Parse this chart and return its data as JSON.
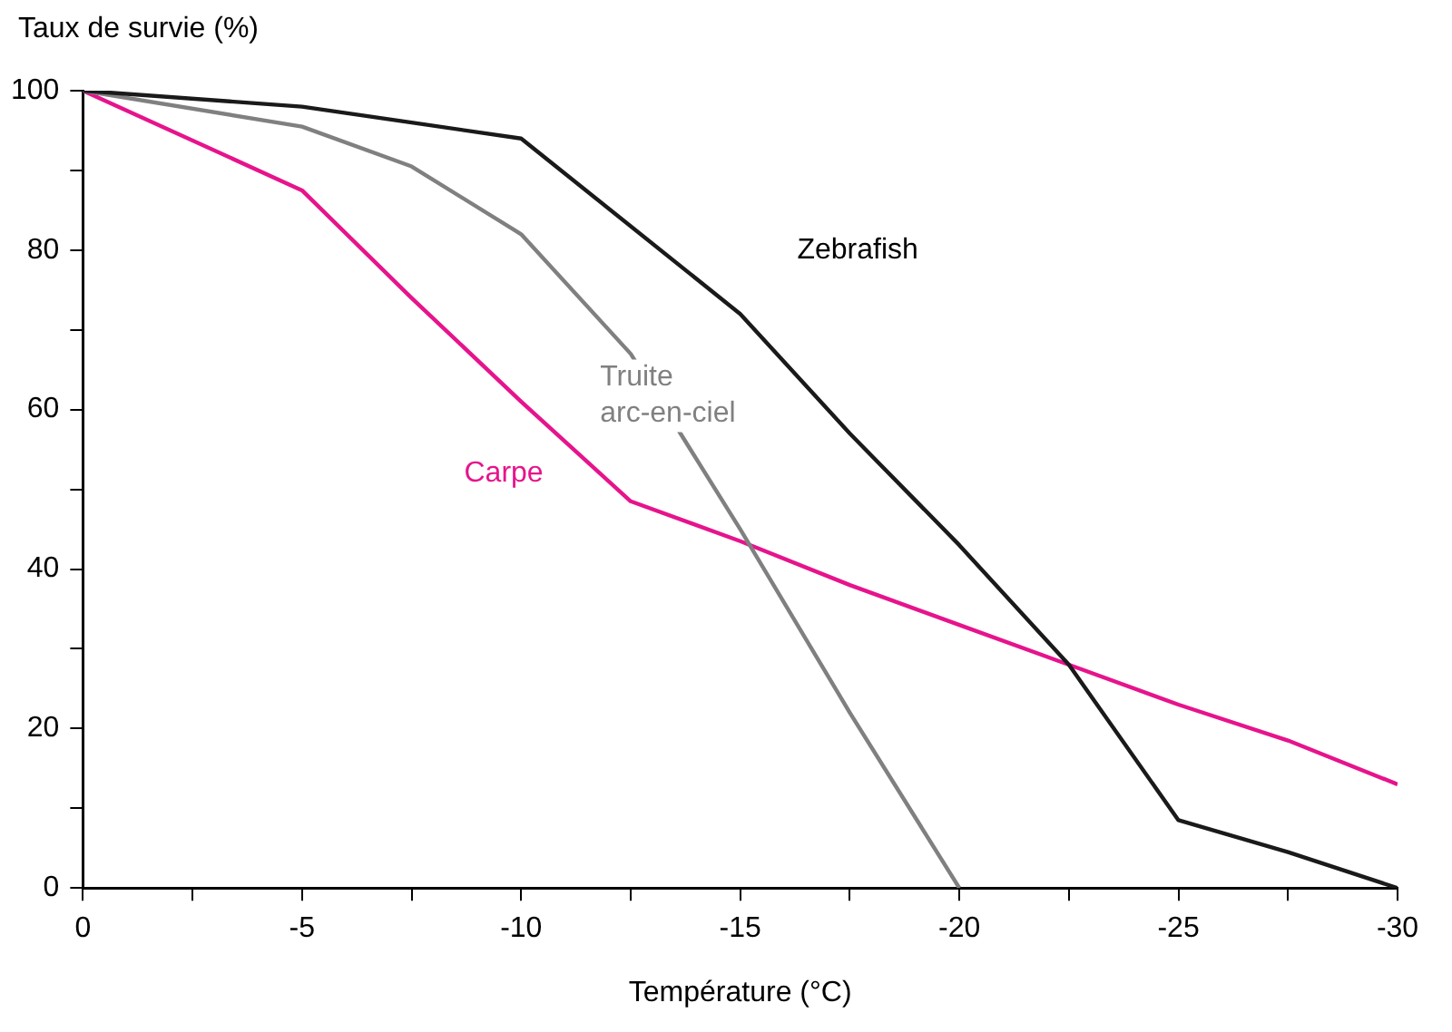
{
  "chart_data": {
    "type": "line",
    "ylabel": "Taux de survie (%)",
    "xlabel": "Température (°C)",
    "xlim": [
      0,
      -30
    ],
    "xticks": [
      0,
      {
        "value": -2.5,
        "label": null
      },
      -5,
      {
        "value": -7.5,
        "label": null
      },
      -10,
      {
        "value": -12.5,
        "label": null
      },
      -15,
      {
        "value": -17.5,
        "label": null
      },
      -20,
      {
        "value": -22.5,
        "label": null
      },
      -25,
      {
        "value": -27.5,
        "label": null
      },
      -30
    ],
    "ylim": [
      0,
      100
    ],
    "yticks": [
      0,
      {
        "value": 10,
        "label": null
      },
      20,
      {
        "value": 30,
        "label": null
      },
      40,
      {
        "value": 50,
        "label": null
      },
      60,
      {
        "value": 70,
        "label": null
      },
      80,
      {
        "value": 90,
        "label": null
      },
      100
    ],
    "grid": false,
    "legend": false,
    "marker": "none",
    "line_style": "solid",
    "series": [
      {
        "name": "Zebrafish",
        "color": "#1a1a1a",
        "x": [
          0,
          -5,
          -7.5,
          -10,
          -15,
          -17.5,
          -20,
          -22.5,
          -25,
          -27.5,
          -30
        ],
        "values": [
          100,
          98,
          96,
          94,
          72,
          57,
          43,
          28,
          8.5,
          4.5,
          0
        ]
      },
      {
        "name": "Truite arc-en-ciel",
        "color": "#808080",
        "x": [
          0,
          -5,
          -7.5,
          -10,
          -12.5,
          -15,
          -17.5,
          -20
        ],
        "values": [
          100,
          95.5,
          90.5,
          82,
          67,
          45,
          22,
          0
        ]
      },
      {
        "name": "Carpe",
        "color": "#e6148c",
        "x": [
          0,
          -5,
          -7.5,
          -10,
          -12.5,
          -15,
          -17.5,
          -20,
          -22.5,
          -25,
          -27.5,
          -30
        ],
        "values": [
          100,
          87.5,
          74,
          61,
          48.5,
          43.5,
          38,
          33,
          28,
          23,
          18.5,
          13
        ]
      }
    ]
  }
}
